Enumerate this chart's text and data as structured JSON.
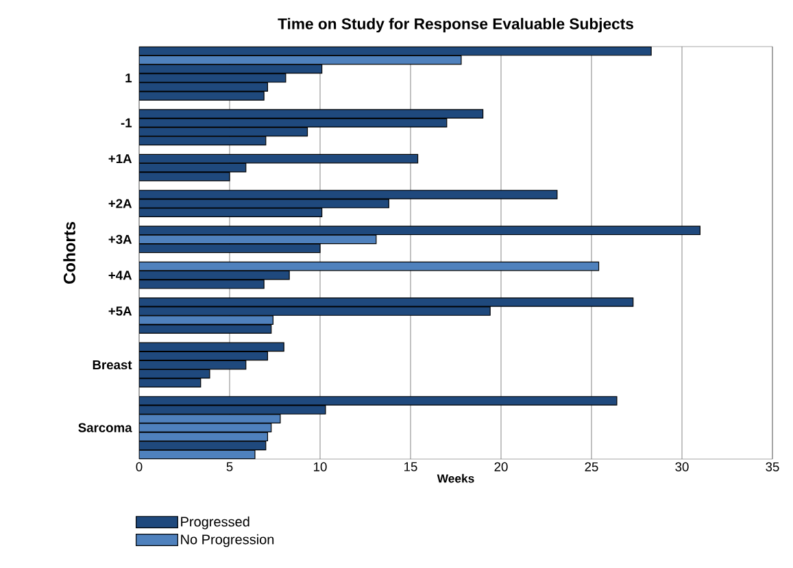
{
  "chart_data": {
    "type": "bar",
    "orientation": "horizontal",
    "title": "Time on Study for Response Evaluable Subjects",
    "xlabel": "Weeks",
    "ylabel": "Cohorts",
    "categories": [
      null,
      null,
      null,
      "1",
      null,
      null,
      null,
      null,
      "-1",
      null,
      null,
      null,
      "+1A",
      null,
      null,
      null,
      null,
      "+2A",
      null,
      null,
      null,
      "+3A",
      null,
      null,
      null,
      "+4A",
      null,
      null,
      null,
      "+5A",
      null,
      null,
      null,
      null,
      null,
      "Breast",
      null,
      null,
      null,
      null,
      null,
      null,
      "Sarcoma",
      null,
      null,
      null
    ],
    "series": [
      {
        "name": "Progressed",
        "color": "#1f497d",
        "values": [
          28.3,
          null,
          10.1,
          8.1,
          7.1,
          6.9,
          null,
          19.0,
          17.0,
          9.3,
          7.0,
          null,
          15.4,
          5.9,
          5.0,
          null,
          23.1,
          13.8,
          10.1,
          null,
          31.0,
          null,
          10.0,
          null,
          null,
          8.3,
          6.9,
          null,
          27.3,
          19.4,
          null,
          7.3,
          null,
          8.0,
          7.1,
          5.9,
          3.9,
          3.4,
          null,
          26.4,
          10.3,
          null,
          null,
          null,
          7.0,
          null
        ]
      },
      {
        "name": "No Progression",
        "color": "#4f81bd",
        "values": [
          null,
          17.8,
          null,
          null,
          null,
          null,
          null,
          null,
          null,
          null,
          null,
          null,
          null,
          null,
          null,
          null,
          null,
          null,
          null,
          null,
          null,
          13.1,
          null,
          null,
          25.4,
          null,
          null,
          null,
          null,
          null,
          7.4,
          null,
          null,
          null,
          null,
          null,
          null,
          null,
          null,
          null,
          null,
          7.8,
          7.3,
          7.1,
          null,
          6.4
        ]
      }
    ],
    "xlim": [
      0,
      35
    ],
    "xticks": [
      0,
      5,
      10,
      15,
      20,
      25,
      30,
      35
    ],
    "grid": "x",
    "legend": "bottom left"
  }
}
